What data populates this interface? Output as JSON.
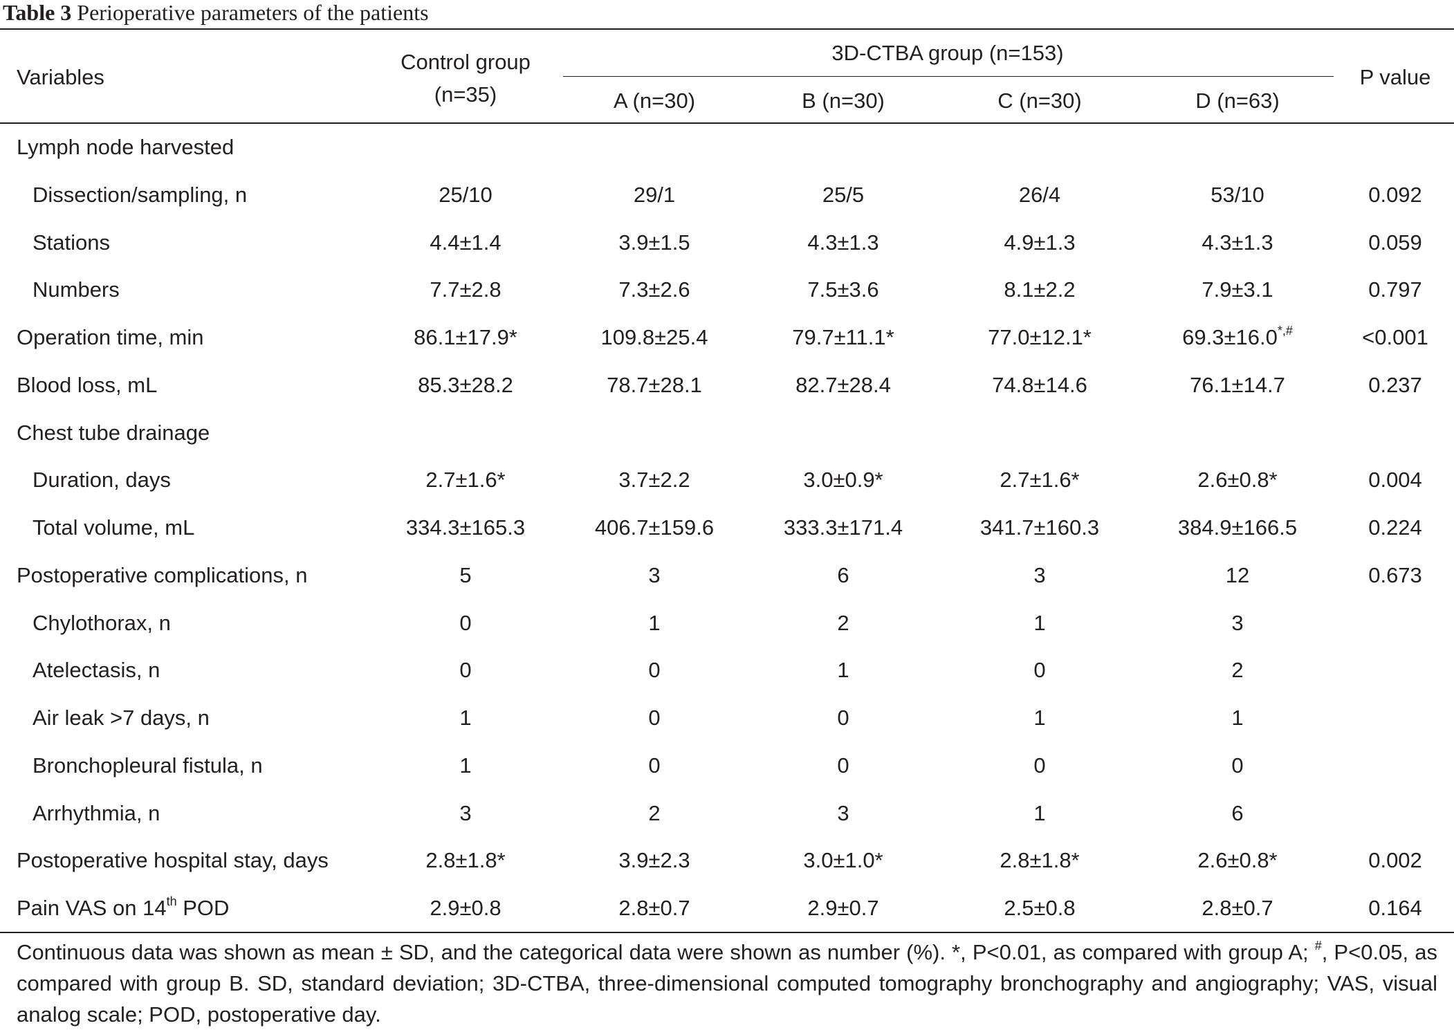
{
  "caption": {
    "number": "Table 3",
    "title": "Perioperative parameters of the patients"
  },
  "header": {
    "variables": "Variables",
    "control_line1": "Control group",
    "control_line2": "(n=35)",
    "ctba_group": "3D-CTBA group (n=153)",
    "sub_a": "A (n=30)",
    "sub_b": "B (n=30)",
    "sub_c": "C (n=30)",
    "sub_d": "D (n=63)",
    "p_value": "P value"
  },
  "rows": [
    {
      "label": "Lymph node harvested",
      "indent": false,
      "values": [
        "",
        "",
        "",
        "",
        "",
        ""
      ]
    },
    {
      "label": "Dissection/sampling, n",
      "indent": true,
      "values": [
        "25/10",
        "29/1",
        "25/5",
        "26/4",
        "53/10",
        "0.092"
      ]
    },
    {
      "label": "Stations",
      "indent": true,
      "values": [
        "4.4±1.4",
        "3.9±1.5",
        "4.3±1.3",
        "4.9±1.3",
        "4.3±1.3",
        "0.059"
      ]
    },
    {
      "label": "Numbers",
      "indent": true,
      "values": [
        "7.7±2.8",
        "7.3±2.6",
        "7.5±3.6",
        "8.1±2.2",
        "7.9±3.1",
        "0.797"
      ]
    },
    {
      "label": "Operation time, min",
      "indent": false,
      "values": [
        "86.1±17.9*",
        "109.8±25.4",
        "79.7±11.1*",
        "77.0±12.1*",
        "69.3±16.0",
        "<0.001"
      ]
    },
    {
      "label": "Blood loss, mL",
      "indent": false,
      "values": [
        "85.3±28.2",
        "78.7±28.1",
        "82.7±28.4",
        "74.8±14.6",
        "76.1±14.7",
        "0.237"
      ]
    },
    {
      "label": "Chest tube drainage",
      "indent": false,
      "values": [
        "",
        "",
        "",
        "",
        "",
        ""
      ]
    },
    {
      "label": "Duration, days",
      "indent": true,
      "values": [
        "2.7±1.6*",
        "3.7±2.2",
        "3.0±0.9*",
        "2.7±1.6*",
        "2.6±0.8*",
        "0.004"
      ]
    },
    {
      "label": "Total volume, mL",
      "indent": true,
      "values": [
        "334.3±165.3",
        "406.7±159.6",
        "333.3±171.4",
        "341.7±160.3",
        "384.9±166.5",
        "0.224"
      ]
    },
    {
      "label": "Postoperative complications, n",
      "indent": false,
      "values": [
        "5",
        "3",
        "6",
        "3",
        "12",
        "0.673"
      ]
    },
    {
      "label": "Chylothorax, n",
      "indent": true,
      "values": [
        "0",
        "1",
        "2",
        "1",
        "3",
        ""
      ]
    },
    {
      "label": "Atelectasis, n",
      "indent": true,
      "values": [
        "0",
        "0",
        "1",
        "0",
        "2",
        ""
      ]
    },
    {
      "label": "Air leak >7 days, n",
      "indent": true,
      "values": [
        "1",
        "0",
        "0",
        "1",
        "1",
        ""
      ]
    },
    {
      "label": "Bronchopleural fistula, n",
      "indent": true,
      "values": [
        "1",
        "0",
        "0",
        "0",
        "0",
        ""
      ]
    },
    {
      "label": "Arrhythmia, n",
      "indent": true,
      "values": [
        "3",
        "2",
        "3",
        "1",
        "6",
        ""
      ]
    },
    {
      "label": "Postoperative hospital stay, days",
      "indent": false,
      "values": [
        "2.8±1.8*",
        "3.9±2.3",
        "3.0±1.0*",
        "2.8±1.8*",
        "2.6±0.8*",
        "0.002"
      ]
    },
    {
      "label": "Pain VAS on 14",
      "indent": false,
      "values": [
        "2.9±0.8",
        "2.8±0.7",
        "2.9±0.7",
        "2.5±0.8",
        "2.8±0.7",
        "0.164"
      ]
    }
  ],
  "operation_time_d_sup": "*,#",
  "pain_vas_sup": "th",
  "pain_vas_suffix": " POD",
  "footnote": {
    "part1": "Continuous data was shown as mean ± SD, and the categorical data were shown as number (%). *, P<0.01, as compared with group A; ",
    "hash": "#",
    "part2": ", P<0.05, as compared with group B. SD, standard deviation; 3D-CTBA, three-dimensional computed tomography bronchography and angiography; VAS, visual analog scale; POD, postoperative day."
  }
}
